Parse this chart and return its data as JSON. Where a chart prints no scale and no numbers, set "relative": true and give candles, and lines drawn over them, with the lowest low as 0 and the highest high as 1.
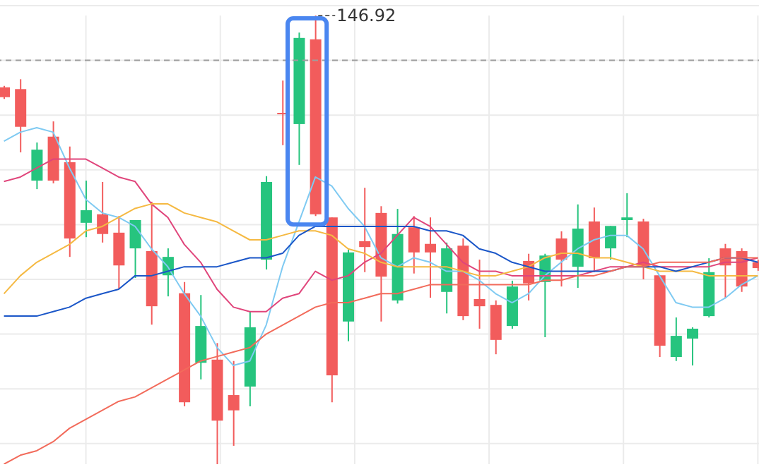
{
  "chart_data": {
    "type": "candlestick",
    "relative": true,
    "grid": true,
    "categories": [
      null,
      null,
      null,
      null,
      null,
      null,
      null,
      null,
      null,
      null,
      null,
      null,
      null,
      null,
      null,
      null,
      null,
      null,
      null,
      null,
      null,
      null,
      null,
      null,
      null,
      null,
      null,
      null,
      null,
      null,
      null,
      null,
      null,
      null,
      null,
      null,
      null,
      null,
      null,
      null,
      null,
      null,
      null,
      null,
      null,
      null,
      null
    ],
    "ohlc": [
      [
        0.84,
        0.843,
        0.814,
        0.818
      ],
      [
        0.836,
        0.858,
        0.695,
        0.752
      ],
      [
        0.632,
        0.717,
        0.613,
        0.701
      ],
      [
        0.73,
        0.764,
        0.626,
        0.632
      ],
      [
        0.673,
        0.708,
        0.462,
        0.503
      ],
      [
        0.538,
        0.632,
        0.506,
        0.566
      ],
      [
        0.557,
        0.629,
        0.494,
        0.513
      ],
      [
        0.516,
        0.553,
        0.39,
        0.443
      ],
      [
        0.481,
        0.544,
        0.415,
        0.544
      ],
      [
        0.475,
        0.585,
        0.311,
        0.352
      ],
      [
        0.421,
        0.481,
        0.374,
        0.462
      ],
      [
        0.381,
        0.406,
        0.129,
        0.138
      ],
      [
        0.226,
        0.377,
        0.189,
        0.308
      ],
      [
        0.233,
        0.27,
        0,
        0.097
      ],
      [
        0.154,
        0.23,
        0.041,
        0.12
      ],
      [
        0.173,
        0.34,
        0.129,
        0.305
      ],
      [
        0.456,
        0.642,
        0.434,
        0.629
      ],
      [
        0.783,
        0.855,
        0.711,
        0.78
      ],
      [
        0.758,
        0.962,
        0.667,
        0.95
      ],
      [
        0.947,
        1,
        0.553,
        0.557
      ],
      [
        0.55,
        0.55,
        0.138,
        0.198
      ],
      [
        0.318,
        0.478,
        0.274,
        0.472
      ],
      [
        0.497,
        0.616,
        0.428,
        0.484
      ],
      [
        0.56,
        0.575,
        0.318,
        0.418
      ],
      [
        0.365,
        0.569,
        0.358,
        0.513
      ],
      [
        0.528,
        0.553,
        0.425,
        0.472
      ],
      [
        0.491,
        0.55,
        0.371,
        0.472
      ],
      [
        0.384,
        0.494,
        0.336,
        0.481
      ],
      [
        0.487,
        0.503,
        0.321,
        0.33
      ],
      [
        0.368,
        0.456,
        0.302,
        0.352
      ],
      [
        0.355,
        0.365,
        0.245,
        0.277
      ],
      [
        0.308,
        0.409,
        0.302,
        0.396
      ],
      [
        0.453,
        0.469,
        0.365,
        0.403
      ],
      [
        0.406,
        0.469,
        0.283,
        0.465
      ],
      [
        0.503,
        0.519,
        0.396,
        0.456
      ],
      [
        0.44,
        0.579,
        0.393,
        0.525
      ],
      [
        0.541,
        0.572,
        0.428,
        0.459
      ],
      [
        0.481,
        0.531,
        0.456,
        0.531
      ],
      [
        0.544,
        0.604,
        0.506,
        0.55
      ],
      [
        0.541,
        0.547,
        0.412,
        0.44
      ],
      [
        0.421,
        0.421,
        0.239,
        0.264
      ],
      [
        0.239,
        0.327,
        0.23,
        0.286
      ],
      [
        0.28,
        0.305,
        0.22,
        0.302
      ],
      [
        0.33,
        0.459,
        0.327,
        0.428
      ],
      [
        0.481,
        0.491,
        0.371,
        0.443
      ],
      [
        0.475,
        0.481,
        0.384,
        0.396
      ],
      [
        0.45,
        0.456,
        0.431,
        0.437
      ]
    ],
    "colors": [
      "#f25c5c",
      "#f25c5c",
      "#26c47e",
      "#f25c5c",
      "#f25c5c",
      "#26c47e",
      "#f25c5c",
      "#f25c5c",
      "#26c47e",
      "#f25c5c",
      "#26c47e",
      "#f25c5c",
      "#26c47e",
      "#f25c5c",
      "#f25c5c",
      "#26c47e",
      "#26c47e",
      "#f25c5c",
      "#26c47e",
      "#f25c5c",
      "#f25c5c",
      "#26c47e",
      "#f25c5c",
      "#f25c5c",
      "#26c47e",
      "#f25c5c",
      "#f25c5c",
      "#26c47e",
      "#f25c5c",
      "#f25c5c",
      "#f25c5c",
      "#26c47e",
      "#f25c5c",
      "#26c47e",
      "#f25c5c",
      "#26c47e",
      "#f25c5c",
      "#26c47e",
      "#26c47e",
      "#f25c5c",
      "#f25c5c",
      "#26c47e",
      "#26c47e",
      "#26c47e",
      "#f25c5c",
      "#f25c5c",
      "#f25c5c"
    ],
    "series": [
      {
        "type": "line",
        "color": "#7fcaf2",
        "values": [
          0.72,
          0.74,
          0.75,
          0.74,
          0.66,
          0.59,
          0.56,
          0.55,
          0.53,
          0.48,
          0.44,
          0.38,
          0.33,
          0.26,
          0.22,
          0.23,
          0.31,
          0.44,
          0.54,
          0.64,
          0.62,
          0.57,
          0.53,
          0.46,
          0.44,
          0.46,
          0.45,
          0.43,
          0.43,
          0.41,
          0.38,
          0.36,
          0.38,
          0.42,
          0.45,
          0.48,
          0.5,
          0.51,
          0.51,
          0.48,
          0.42,
          0.36,
          0.35,
          0.35,
          0.37,
          0.4,
          0.42
        ]
      },
      {
        "type": "line",
        "color": "#e0457b",
        "values": [
          0.63,
          0.64,
          0.66,
          0.68,
          0.68,
          0.68,
          0.66,
          0.64,
          0.63,
          0.58,
          0.55,
          0.49,
          0.45,
          0.39,
          0.35,
          0.34,
          0.34,
          0.37,
          0.38,
          0.43,
          0.41,
          0.42,
          0.45,
          0.47,
          0.51,
          0.55,
          0.53,
          0.49,
          0.45,
          0.43,
          0.43,
          0.42,
          0.42,
          0.42,
          0.42,
          0.42,
          0.43,
          0.44,
          0.44,
          0.45,
          0.44,
          0.44,
          0.44,
          0.44,
          0.45,
          0.45,
          0.46
        ]
      },
      {
        "type": "line",
        "color": "#f5b942",
        "values": [
          0.38,
          0.42,
          0.45,
          0.47,
          0.49,
          0.52,
          0.53,
          0.55,
          0.57,
          0.58,
          0.58,
          0.56,
          0.55,
          0.54,
          0.52,
          0.5,
          0.5,
          0.51,
          0.52,
          0.52,
          0.51,
          0.48,
          0.47,
          0.45,
          0.44,
          0.44,
          0.44,
          0.44,
          0.43,
          0.42,
          0.42,
          0.43,
          0.44,
          0.46,
          0.47,
          0.47,
          0.46,
          0.46,
          0.45,
          0.44,
          0.43,
          0.43,
          0.43,
          0.42,
          0.42,
          0.42,
          0.42
        ]
      },
      {
        "type": "line",
        "color": "#1a56c8",
        "values": [
          0.33,
          0.33,
          0.33,
          0.34,
          0.35,
          0.37,
          0.38,
          0.39,
          0.42,
          0.42,
          0.43,
          0.44,
          0.44,
          0.44,
          0.45,
          0.46,
          0.46,
          0.47,
          0.51,
          0.53,
          0.53,
          0.53,
          0.53,
          0.53,
          0.53,
          0.53,
          0.52,
          0.52,
          0.51,
          0.48,
          0.47,
          0.45,
          0.44,
          0.43,
          0.43,
          0.43,
          0.43,
          0.43,
          0.44,
          0.44,
          0.44,
          0.43,
          0.44,
          0.45,
          0.46,
          0.46,
          0.45
        ]
      },
      {
        "type": "line",
        "color": "#f26b5b",
        "values": [
          0.0,
          0.02,
          0.03,
          0.05,
          0.08,
          0.1,
          0.12,
          0.14,
          0.15,
          0.17,
          0.19,
          0.21,
          0.23,
          0.24,
          0.25,
          0.26,
          0.29,
          0.31,
          0.33,
          0.35,
          0.36,
          0.36,
          0.37,
          0.38,
          0.38,
          0.39,
          0.4,
          0.4,
          0.4,
          0.4,
          0.4,
          0.4,
          0.4,
          0.41,
          0.41,
          0.42,
          0.42,
          0.43,
          0.44,
          0.44,
          0.45,
          0.45,
          0.45,
          0.45,
          0.46,
          0.46,
          0.46
        ]
      }
    ],
    "ref_lines": [
      {
        "axis": "y",
        "value": 0.9,
        "color": "#9e9e9e",
        "line_style": "dashed"
      }
    ],
    "annotations": [
      "146.92"
    ]
  }
}
